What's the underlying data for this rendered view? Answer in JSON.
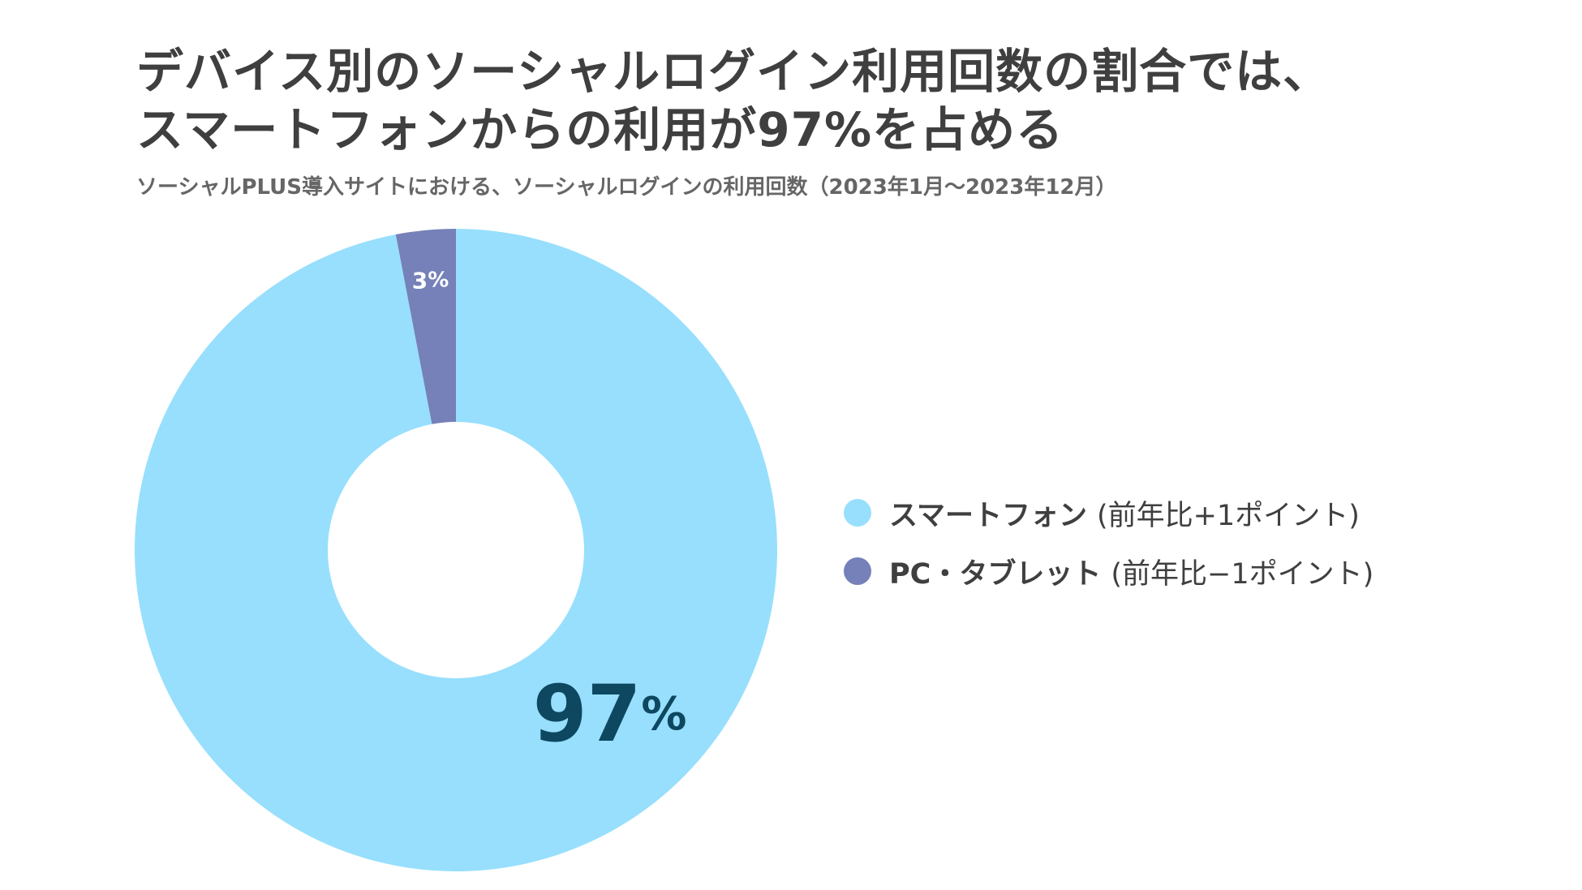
{
  "header": {
    "title_line1": "デバイス別のソーシャルログイン利用回数の割合では、",
    "title_line2": "スマートフォンからの利用が97%を占める",
    "subtitle": "ソーシャルPLUS導入サイトにおける、ソーシャルログインの利用回数（2023年1月〜2023年12月）"
  },
  "chart_data": {
    "type": "pie",
    "variant": "donut",
    "title": "デバイス別のソーシャルログイン利用回数の割合では、スマートフォンからの利用が97%を占める",
    "subtitle": "ソーシャルPLUS導入サイトにおける、ソーシャルログインの利用回数（2023年1月〜2023年12月）",
    "unit": "%",
    "legend_position": "right",
    "slices": [
      {
        "name": "スマートフォン",
        "note": "(前年比+1ポイント)",
        "value": 97,
        "label_value": "97",
        "label_unit": "%",
        "color": "#97dffd",
        "label_color": "#0d4760"
      },
      {
        "name": "PC・タブレット",
        "note": "(前年比−1ポイント)",
        "value": 3,
        "label_value": "3",
        "label_unit": "%",
        "color": "#7581b8",
        "label_color": "#ffffff"
      }
    ]
  }
}
